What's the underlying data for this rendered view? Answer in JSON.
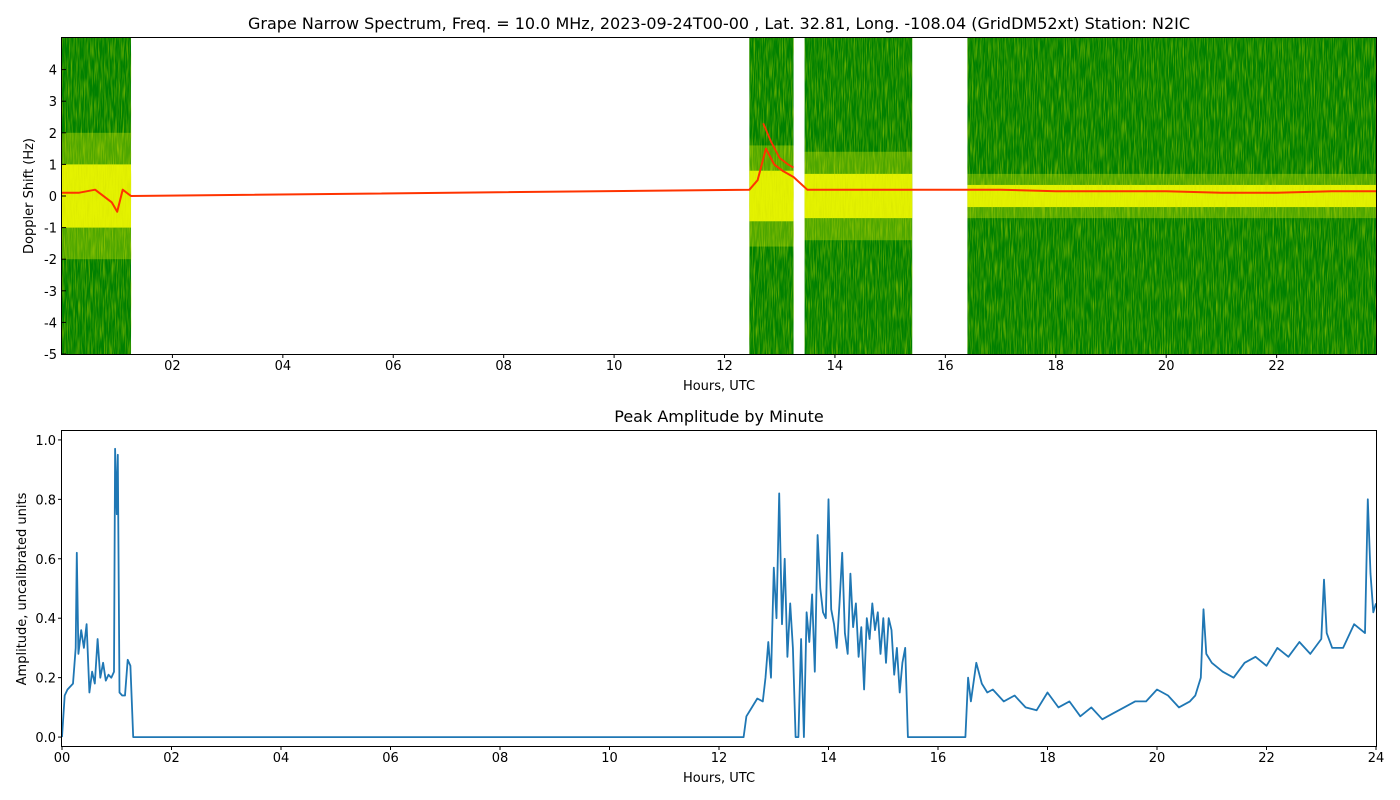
{
  "colors": {
    "spectrum_background": "#008000",
    "spectrum_band": "#ffff00",
    "spectrum_peak": "#ff3300",
    "amplitude_line": "#1f77b4"
  },
  "chart_data": [
    {
      "type": "heatmap",
      "title": "Grape Narrow Spectrum, Freq. = 10.0 MHz, 2023-09-24T00-00 , Lat.  32.81, Long. -108.04 (GridDM52xt) Station: N2IC",
      "xlabel": "Hours, UTC",
      "ylabel": "Doppler Shift (Hz)",
      "xlim": [
        0,
        23.8
      ],
      "ylim": [
        -5,
        5
      ],
      "xticks": [
        {
          "value": 2,
          "label": "02"
        },
        {
          "value": 4,
          "label": "04"
        },
        {
          "value": 6,
          "label": "06"
        },
        {
          "value": 8,
          "label": "08"
        },
        {
          "value": 10,
          "label": "10"
        },
        {
          "value": 12,
          "label": "12"
        },
        {
          "value": 14,
          "label": "14"
        },
        {
          "value": 16,
          "label": "16"
        },
        {
          "value": 18,
          "label": "18"
        },
        {
          "value": 20,
          "label": "20"
        },
        {
          "value": 22,
          "label": "22"
        }
      ],
      "yticks": [
        {
          "value": 4,
          "label": "4"
        },
        {
          "value": 3,
          "label": "3"
        },
        {
          "value": 2,
          "label": "2"
        },
        {
          "value": 1,
          "label": "1"
        },
        {
          "value": 0,
          "label": "0"
        },
        {
          "value": -1,
          "label": "-1"
        },
        {
          "value": -2,
          "label": "-2"
        },
        {
          "value": -3,
          "label": "-3"
        },
        {
          "value": -4,
          "label": "-4"
        },
        {
          "value": -5,
          "label": "-5"
        }
      ],
      "data_segments": [
        {
          "start": 0.0,
          "end": 1.25,
          "band_halfwidth": 1.0
        },
        {
          "start": 12.45,
          "end": 13.25,
          "band_halfwidth": 0.8
        },
        {
          "start": 13.45,
          "end": 15.4,
          "band_halfwidth": 0.7
        },
        {
          "start": 16.4,
          "end": 23.8,
          "band_halfwidth": 0.35
        }
      ],
      "doppler_trace": {
        "x": [
          0.0,
          0.3,
          0.6,
          0.9,
          1.0,
          1.1,
          1.25,
          12.45,
          12.6,
          12.75,
          12.9,
          13.05,
          13.25,
          13.5,
          14.0,
          14.5,
          15.0,
          15.4,
          16.4,
          17,
          18,
          19,
          20,
          21,
          22,
          23,
          23.8
        ],
        "y": [
          0.1,
          0.1,
          0.2,
          -0.2,
          -0.5,
          0.2,
          0.0,
          0.2,
          0.5,
          1.5,
          1.0,
          0.8,
          0.6,
          0.2,
          0.2,
          0.2,
          0.2,
          0.2,
          0.2,
          0.2,
          0.15,
          0.15,
          0.15,
          0.1,
          0.1,
          0.15,
          0.15
        ]
      },
      "early_trace": {
        "x": [
          12.7,
          12.85,
          13.0,
          13.15,
          13.25
        ],
        "y": [
          2.3,
          1.7,
          1.2,
          1.0,
          0.9
        ]
      }
    },
    {
      "type": "line",
      "title": "Peak Amplitude by Minute",
      "xlabel": "Hours, UTC",
      "ylabel": "Amplitude, uncalibrated units",
      "xlim": [
        0,
        24
      ],
      "ylim": [
        -0.03,
        1.03
      ],
      "xticks": [
        {
          "value": 0,
          "label": "00"
        },
        {
          "value": 2,
          "label": "02"
        },
        {
          "value": 4,
          "label": "04"
        },
        {
          "value": 6,
          "label": "06"
        },
        {
          "value": 8,
          "label": "08"
        },
        {
          "value": 10,
          "label": "10"
        },
        {
          "value": 12,
          "label": "12"
        },
        {
          "value": 14,
          "label": "14"
        },
        {
          "value": 16,
          "label": "16"
        },
        {
          "value": 18,
          "label": "18"
        },
        {
          "value": 20,
          "label": "20"
        },
        {
          "value": 22,
          "label": "22"
        },
        {
          "value": 24,
          "label": "24"
        }
      ],
      "yticks": [
        {
          "value": 0.0,
          "label": "0.0"
        },
        {
          "value": 0.2,
          "label": "0.2"
        },
        {
          "value": 0.4,
          "label": "0.4"
        },
        {
          "value": 0.6,
          "label": "0.6"
        },
        {
          "value": 0.8,
          "label": "0.8"
        },
        {
          "value": 1.0,
          "label": "1.0"
        }
      ],
      "series": [
        {
          "x": [
            0.0,
            0.05,
            0.1,
            0.15,
            0.2,
            0.25,
            0.27,
            0.3,
            0.35,
            0.4,
            0.45,
            0.5,
            0.55,
            0.6,
            0.65,
            0.7,
            0.75,
            0.8,
            0.85,
            0.9,
            0.95,
            0.97,
            1.0,
            1.02,
            1.05,
            1.1,
            1.15,
            1.2,
            1.25,
            1.3,
            12.45,
            12.5,
            12.6,
            12.7,
            12.8,
            12.85,
            12.9,
            12.95,
            13.0,
            13.05,
            13.1,
            13.15,
            13.2,
            13.25,
            13.3,
            13.35,
            13.4,
            13.45,
            13.5,
            13.55,
            13.6,
            13.65,
            13.7,
            13.75,
            13.8,
            13.85,
            13.9,
            13.95,
            14.0,
            14.05,
            14.1,
            14.15,
            14.2,
            14.25,
            14.3,
            14.35,
            14.4,
            14.45,
            14.5,
            14.55,
            14.6,
            14.65,
            14.7,
            14.75,
            14.8,
            14.85,
            14.9,
            14.95,
            15.0,
            15.05,
            15.1,
            15.15,
            15.2,
            15.25,
            15.3,
            15.35,
            15.4,
            15.45,
            15.5,
            15.55,
            15.6,
            16.5,
            16.55,
            16.6,
            16.7,
            16.8,
            16.9,
            17.0,
            17.2,
            17.4,
            17.6,
            17.8,
            18.0,
            18.2,
            18.4,
            18.6,
            18.8,
            19.0,
            19.2,
            19.4,
            19.6,
            19.8,
            20.0,
            20.2,
            20.4,
            20.6,
            20.7,
            20.8,
            20.85,
            20.9,
            21.0,
            21.2,
            21.4,
            21.6,
            21.8,
            22.0,
            22.2,
            22.4,
            22.6,
            22.8,
            23.0,
            23.05,
            23.1,
            23.2,
            23.4,
            23.6,
            23.8,
            23.85,
            23.9,
            23.95,
            24.0
          ],
          "y": [
            0.0,
            0.14,
            0.16,
            0.17,
            0.18,
            0.3,
            0.62,
            0.28,
            0.36,
            0.3,
            0.38,
            0.15,
            0.22,
            0.18,
            0.33,
            0.2,
            0.25,
            0.19,
            0.21,
            0.2,
            0.22,
            0.97,
            0.75,
            0.95,
            0.15,
            0.14,
            0.14,
            0.26,
            0.24,
            0.0,
            0.0,
            0.07,
            0.1,
            0.13,
            0.12,
            0.2,
            0.32,
            0.2,
            0.57,
            0.4,
            0.82,
            0.38,
            0.6,
            0.27,
            0.45,
            0.3,
            0.0,
            0.0,
            0.33,
            0.0,
            0.42,
            0.32,
            0.48,
            0.22,
            0.68,
            0.5,
            0.42,
            0.4,
            0.8,
            0.43,
            0.38,
            0.3,
            0.45,
            0.62,
            0.35,
            0.28,
            0.55,
            0.37,
            0.45,
            0.27,
            0.37,
            0.16,
            0.4,
            0.33,
            0.45,
            0.36,
            0.42,
            0.28,
            0.4,
            0.25,
            0.4,
            0.36,
            0.21,
            0.3,
            0.15,
            0.25,
            0.3,
            0.0,
            0.0,
            0.0,
            0.0,
            0.0,
            0.2,
            0.12,
            0.25,
            0.18,
            0.15,
            0.16,
            0.12,
            0.14,
            0.1,
            0.09,
            0.15,
            0.1,
            0.12,
            0.07,
            0.1,
            0.06,
            0.08,
            0.1,
            0.12,
            0.12,
            0.16,
            0.14,
            0.1,
            0.12,
            0.14,
            0.2,
            0.43,
            0.28,
            0.25,
            0.22,
            0.2,
            0.25,
            0.27,
            0.24,
            0.3,
            0.27,
            0.32,
            0.28,
            0.33,
            0.53,
            0.35,
            0.3,
            0.3,
            0.38,
            0.35,
            0.8,
            0.55,
            0.42,
            0.45
          ]
        }
      ]
    }
  ]
}
